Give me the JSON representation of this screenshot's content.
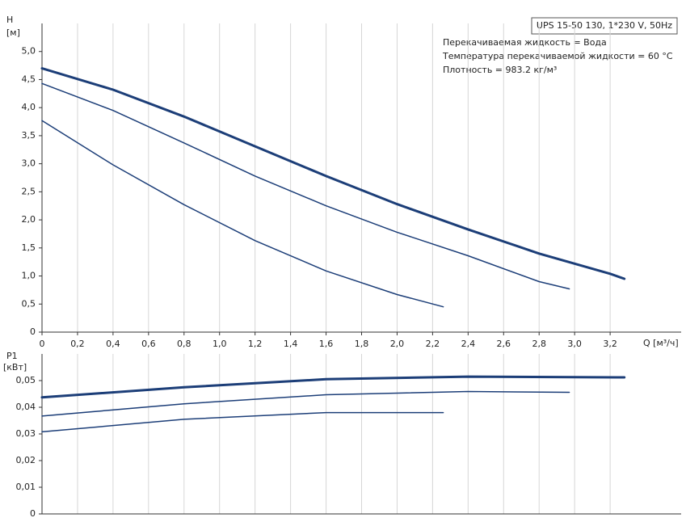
{
  "chart_data": [
    {
      "type": "line",
      "y_label": "H",
      "y_unit": "[м]",
      "x_label": "Q [м³/ч]",
      "box_title": "UPS 15-50 130, 1*230 V, 50Hz",
      "annotations": [
        "Перекачиваемая жидкость = Вода",
        "Температура перекачиваемой жидкости = 60 °C",
        "Плотность = 983.2 кг/м³"
      ],
      "xlim": [
        0,
        3.6
      ],
      "ylim": [
        0,
        5.5
      ],
      "xticks": [
        0,
        {
          "value": 0.2,
          "label": "0,2"
        },
        {
          "value": 0.4,
          "label": "0,4"
        },
        {
          "value": 0.6,
          "label": "0,6"
        },
        {
          "value": 0.8,
          "label": "0,8"
        },
        {
          "value": 1.0,
          "label": "1,0"
        },
        {
          "value": 1.2,
          "label": "1,2"
        },
        {
          "value": 1.4,
          "label": "1,4"
        },
        {
          "value": 1.6,
          "label": "1,6"
        },
        {
          "value": 1.8,
          "label": "1,8"
        },
        {
          "value": 2.0,
          "label": "2,0"
        },
        {
          "value": 2.2,
          "label": "2,2"
        },
        {
          "value": 2.4,
          "label": "2,4"
        },
        {
          "value": 2.6,
          "label": "2,6"
        },
        {
          "value": 2.8,
          "label": "2,8"
        },
        {
          "value": 3.0,
          "label": "3,0"
        },
        {
          "value": 3.2,
          "label": "3,2"
        }
      ],
      "yticks": [
        0,
        {
          "value": 0.5,
          "label": "0,5"
        },
        {
          "value": 1.0,
          "label": "1,0"
        },
        {
          "value": 1.5,
          "label": "1,5"
        },
        {
          "value": 2.0,
          "label": "2,0"
        },
        {
          "value": 2.5,
          "label": "2,5"
        },
        {
          "value": 3.0,
          "label": "3,0"
        },
        {
          "value": 3.5,
          "label": "3,5"
        },
        {
          "value": 4.0,
          "label": "4,0"
        },
        {
          "value": 4.5,
          "label": "4,5"
        },
        {
          "value": 5.0,
          "label": "5,0"
        }
      ],
      "grid": "x",
      "series": [
        {
          "color": "#1c3e78",
          "width": 3,
          "x": [
            0,
            0.4,
            0.8,
            1.2,
            1.6,
            2.0,
            2.4,
            2.8,
            3.2,
            3.28
          ],
          "values": [
            4.7,
            4.32,
            3.84,
            3.31,
            2.78,
            2.28,
            1.83,
            1.4,
            1.04,
            0.95
          ]
        },
        {
          "color": "#1c3e78",
          "width": 1.5,
          "x": [
            0,
            0.4,
            0.8,
            1.2,
            1.6,
            2.0,
            2.4,
            2.8,
            2.97
          ],
          "values": [
            4.43,
            3.95,
            3.37,
            2.78,
            2.25,
            1.78,
            1.36,
            0.9,
            0.77
          ]
        },
        {
          "color": "#1c3e78",
          "width": 1.5,
          "x": [
            0,
            0.4,
            0.8,
            1.2,
            1.6,
            2.0,
            2.26
          ],
          "values": [
            3.77,
            2.98,
            2.27,
            1.63,
            1.09,
            0.67,
            0.45
          ]
        }
      ]
    },
    {
      "type": "line",
      "y_label": "P1",
      "y_unit": "[кВт]",
      "xlim": [
        0,
        3.6
      ],
      "ylim": [
        0,
        0.06
      ],
      "yticks": [
        0,
        {
          "value": 0.01,
          "label": "0,01"
        },
        {
          "value": 0.02,
          "label": "0,02"
        },
        {
          "value": 0.03,
          "label": "0,03"
        },
        {
          "value": 0.04,
          "label": "0,04"
        },
        {
          "value": 0.05,
          "label": "0,05"
        }
      ],
      "grid": "x",
      "series": [
        {
          "color": "#1c3e78",
          "width": 3,
          "x": [
            0,
            0.8,
            1.6,
            2.4,
            3.28
          ],
          "values": [
            0.0437,
            0.0475,
            0.0505,
            0.0515,
            0.0512
          ]
        },
        {
          "color": "#1c3e78",
          "width": 1.5,
          "x": [
            0,
            0.8,
            1.6,
            2.4,
            2.97
          ],
          "values": [
            0.0367,
            0.0413,
            0.0447,
            0.0459,
            0.0456
          ]
        },
        {
          "color": "#1c3e78",
          "width": 1.5,
          "x": [
            0,
            0.8,
            1.6,
            2.26
          ],
          "values": [
            0.0308,
            0.0355,
            0.038,
            0.038
          ]
        }
      ]
    }
  ]
}
